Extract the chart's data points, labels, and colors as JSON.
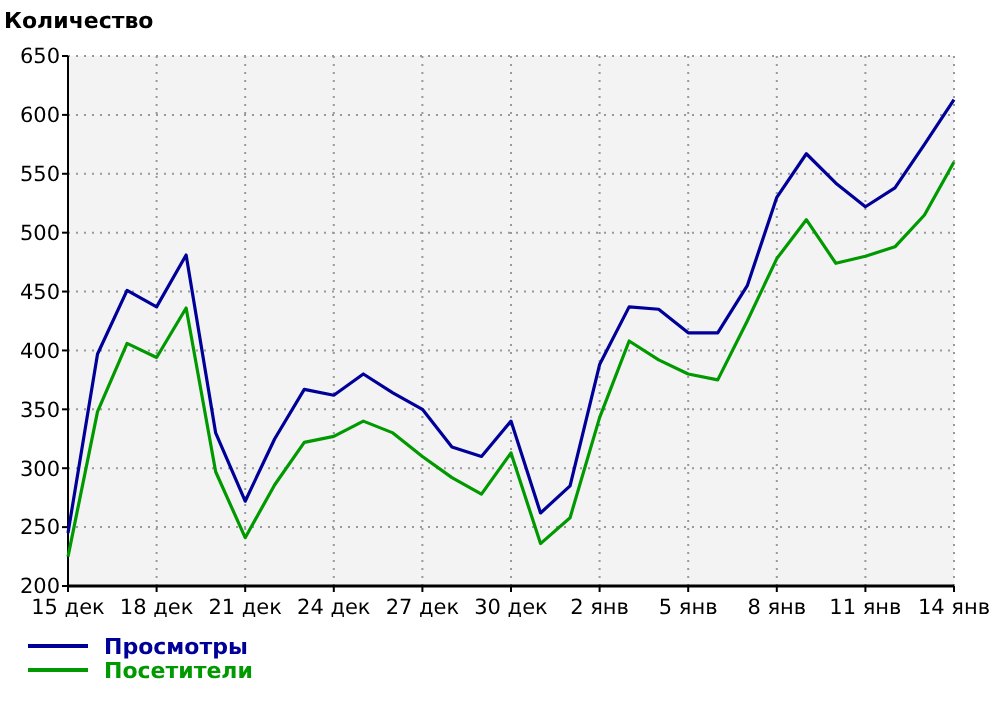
{
  "chart_data": {
    "type": "line",
    "ylabel": "Количество",
    "categories": [
      "15 дек",
      null,
      null,
      "18 дек",
      null,
      null,
      "21 дек",
      null,
      null,
      "24 дек",
      null,
      null,
      "27 дек",
      null,
      null,
      "30 дек",
      null,
      null,
      "2 янв",
      null,
      null,
      "5 янв",
      null,
      null,
      "8 янв",
      null,
      null,
      "11 янв",
      null,
      null,
      "14 янв"
    ],
    "series": [
      {
        "name": "Просмотры",
        "color": "#000099",
        "values": [
          245,
          397,
          451,
          437,
          481,
          330,
          272,
          325,
          367,
          362,
          380,
          364,
          350,
          318,
          310,
          340,
          262,
          285,
          388,
          437,
          435,
          415,
          415,
          455,
          530,
          567,
          542,
          522,
          538,
          575,
          613
        ]
      },
      {
        "name": "Посетители",
        "color": "#009900",
        "values": [
          225,
          348,
          406,
          394,
          436,
          297,
          241,
          286,
          322,
          327,
          340,
          330,
          310,
          292,
          278,
          313,
          236,
          258,
          343,
          408,
          392,
          380,
          375,
          425,
          478,
          511,
          474,
          480,
          488,
          515,
          560
        ]
      }
    ],
    "ylim": [
      200,
      650
    ],
    "yticks": [
      200,
      250,
      300,
      350,
      400,
      450,
      500,
      550,
      600,
      650
    ],
    "grid": true,
    "legend": "bottom left",
    "marker": "none",
    "line_style": "solid"
  }
}
